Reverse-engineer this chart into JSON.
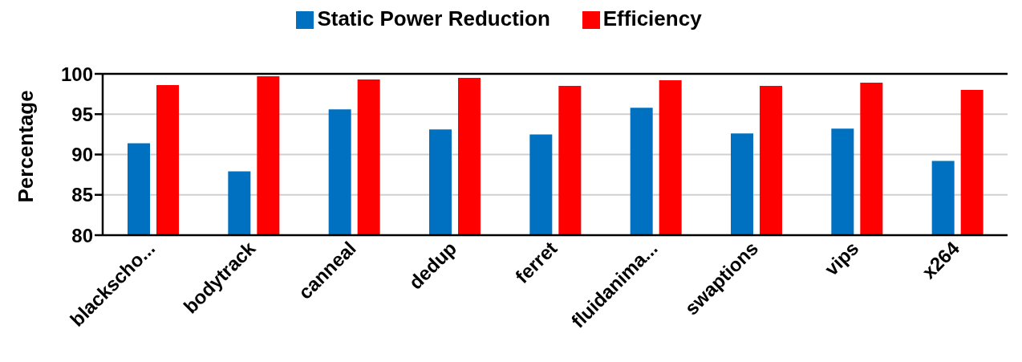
{
  "chart_data": {
    "type": "bar",
    "ylabel": "Percentage",
    "categories": [
      "blackscho...",
      "bodytrack",
      "canneal",
      "dedup",
      "ferret",
      "fluidanima...",
      "swaptions",
      "vips",
      "x264"
    ],
    "series": [
      {
        "name": "Static Power Reduction",
        "color": "#0070c0",
        "values": [
          91.4,
          87.9,
          95.6,
          93.1,
          92.5,
          95.8,
          92.6,
          93.2,
          89.2
        ]
      },
      {
        "name": "Efficiency",
        "color": "#ff0000",
        "values": [
          98.6,
          99.7,
          99.3,
          99.5,
          98.5,
          99.2,
          98.5,
          98.9,
          98.0
        ]
      }
    ],
    "ylim": [
      80,
      100
    ],
    "yticks": [
      80,
      85,
      90,
      95,
      100
    ],
    "grid": "y",
    "legend": "top"
  }
}
